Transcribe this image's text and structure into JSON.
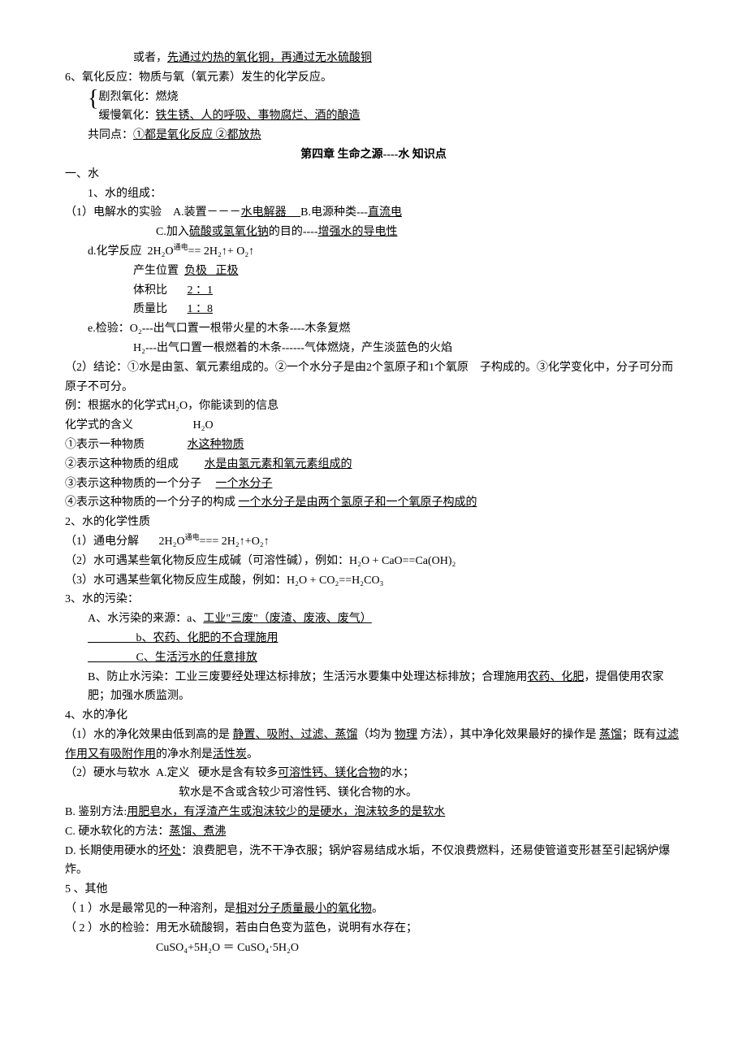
{
  "lines": {
    "l1_a": "或者，",
    "l1_b": "先通过灼热的氧化铜，再通过无水硫酸铜",
    "l2": "6、氧化反应：物质与氧（氧元素）发生的化学反应。",
    "l3": "剧烈氧化：燃烧",
    "l4_a": "缓慢氧化：",
    "l4_b": "铁生锈、人的呼吸、事物腐烂、酒的酿造",
    "l5_a": "共同点：",
    "l5_b": "①都是氧化反应 ②都放热",
    "title": "第四章  生命之源----水       知识点",
    "l6": "一、水",
    "l7": "1、水的组成：",
    "l8_a": "（1）电解水的实验    A.装置－－－",
    "l8_b": "水电解器     ",
    "l8_c": "B.电源种类---",
    "l8_d": "直流电",
    "l9_a": "C.加入",
    "l9_b": "硫酸或氢氧化钠",
    "l9_c": "的目的----",
    "l9_d": "增强水的导电性",
    "l10_a": "d.化学反应  2H₂O",
    "l10_b": "通电",
    "l10_c": "== 2H₂↑+ O₂↑",
    "l11_a": "产生位置  ",
    "l11_b": "负极   正极",
    "l12_a": "体积比       ",
    "l12_b": "2 ：1",
    "l13_a": "质量比       ",
    "l13_b": "1 ：8",
    "l14": "e.检验：O₂---出气口置一根带火星的木条----木条复燃",
    "l15": "H₂---出气口置一根燃着的木条------气体燃烧，产生淡蓝色的火焰",
    "l16": "（2）结论：①水是由氢、氧元素组成的。②一个水分子是由2个氢原子和1个氧原    子构成的。③化学变化中，分子可分而原子不可分。",
    "l17": "例：根据水的化学式H₂O，你能读到的信息",
    "l18": "化学式的含义                     H₂O",
    "l19_a": "①表示一种物质               ",
    "l19_b": "水这种物质",
    "l20_a": "②表示这种物质的组成         ",
    "l20_b": "水是由氢元素和氧元素组成的",
    "l21_a": "③表示这种物质的一个分子     ",
    "l21_b": "一个水分子",
    "l22_a": "④表示这种物质的一个分子的构成 ",
    "l22_b": "一个水分子是由两个氢原子和一个氧原子构成的",
    "l23": "2、水的化学性质",
    "l24_a": "（1）通电分解       2H₂O",
    "l24_b": "通电",
    "l24_c": "=== 2H₂↑+O₂↑",
    "l25": "（2）水可遇某些氧化物反应生成碱（可溶性碱），例如：H₂O + CaO==Ca(OH)₂",
    "l26": "（3）水可遇某些氧化物反应生成酸，例如：H₂O + CO₂==H₂CO₃",
    "l27": "3、水的污染：",
    "l28_a": "A、水污染的来源：a、",
    "l28_b": "工业\"三废\"（废渣、废液、废气）",
    "l29_a": "                 ",
    "l29_b": "b、农药、化肥的不合理施用",
    "l30_a": "                 ",
    "l30_b": "C、生活污水的任意排放",
    "l31_a": "B、防止水污染：工业三废要经处理达标排放；生活污水要集中处理达标排放；合理施用",
    "l31_b": "农药、化肥",
    "l31_c": "，提倡使用农家肥；加强水质监测。",
    "l32": "4、水的净化",
    "l33_a": "（1）水的净化效果由低到高的是 ",
    "l33_b": "静置、吸附、过滤、蒸馏",
    "l33_c": "（均为 ",
    "l33_d": "物理",
    "l33_e": " 方法），其中净化效果最好的操作是 ",
    "l33_f": "蒸馏",
    "l33_g": "；既有",
    "l33_h": "过滤作用又有吸附作用",
    "l33_i": "的净水剂是",
    "l33_j": "活性炭",
    "l33_k": "。",
    "l34_a": "（2）硬水与软水  A.定义   硬水是含有较多",
    "l34_b": "可溶性钙、镁化合物",
    "l34_c": "的水；",
    "l35": "软水是不含或含较少可溶性钙、镁化合物的水。",
    "l36_a": "B. 鉴别方法:",
    "l36_b": "用肥皂水，有浮渣产生或泡沫较少的是硬水，泡沫较多的是软水",
    "l37_a": "C. 硬水软化的方法：",
    "l37_b": "蒸馏、煮沸",
    "l38_a": "D. 长期使用硬水的",
    "l38_b": "坏处",
    "l38_c": "：浪费肥皂，洗不干净衣服；锅炉容易结成水垢，不仅浪费燃料，还易使管道变形甚至引起锅炉爆炸。",
    "l39": "5 、其他",
    "l40_a": "（ 1 ）水是最常见的一种溶剂，是",
    "l40_b": "相对分子质量最小的氧化物",
    "l40_c": "。",
    "l41": "（ 2 ）水的检验：用无水硫酸铜，若由白色变为蓝色，说明有水存在；",
    "l42": "CuSO₄+5H₂O ＝ CuSO₄·5H₂O"
  },
  "colors": {
    "text": "#000000",
    "background": "#ffffff"
  },
  "typography": {
    "body_fontsize": 14,
    "title_fontsize": 14,
    "font_family": "SimSun"
  }
}
